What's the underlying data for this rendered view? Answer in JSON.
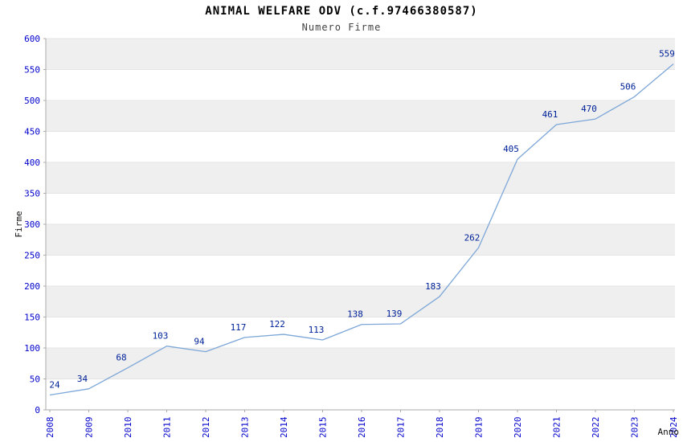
{
  "chart_data": {
    "type": "line",
    "title": "ANIMAL WELFARE ODV (c.f.97466380587)",
    "subtitle": "Numero Firme",
    "xlabel": "Anno",
    "ylabel": "Firme",
    "categories": [
      "2008",
      "2009",
      "2010",
      "2011",
      "2012",
      "2013",
      "2014",
      "2015",
      "2016",
      "2017",
      "2018",
      "2019",
      "2020",
      "2021",
      "2022",
      "2023",
      "2024"
    ],
    "values": [
      24,
      34,
      68,
      103,
      94,
      117,
      122,
      113,
      138,
      139,
      183,
      262,
      405,
      461,
      470,
      506,
      559
    ],
    "ylim": [
      0,
      600
    ],
    "ytick_step": 50,
    "grid": "horizontal-alternating-bands",
    "legend": "none",
    "colors": {
      "line": "#7da7d8",
      "point_label": "#002299",
      "tick_label": "#0000cc",
      "band": "#efefef",
      "gridline": "#e4e4e4",
      "axis": "#aaaaaa",
      "title": "#000000",
      "subtitle": "#444444",
      "axis_label": "#111111"
    }
  }
}
